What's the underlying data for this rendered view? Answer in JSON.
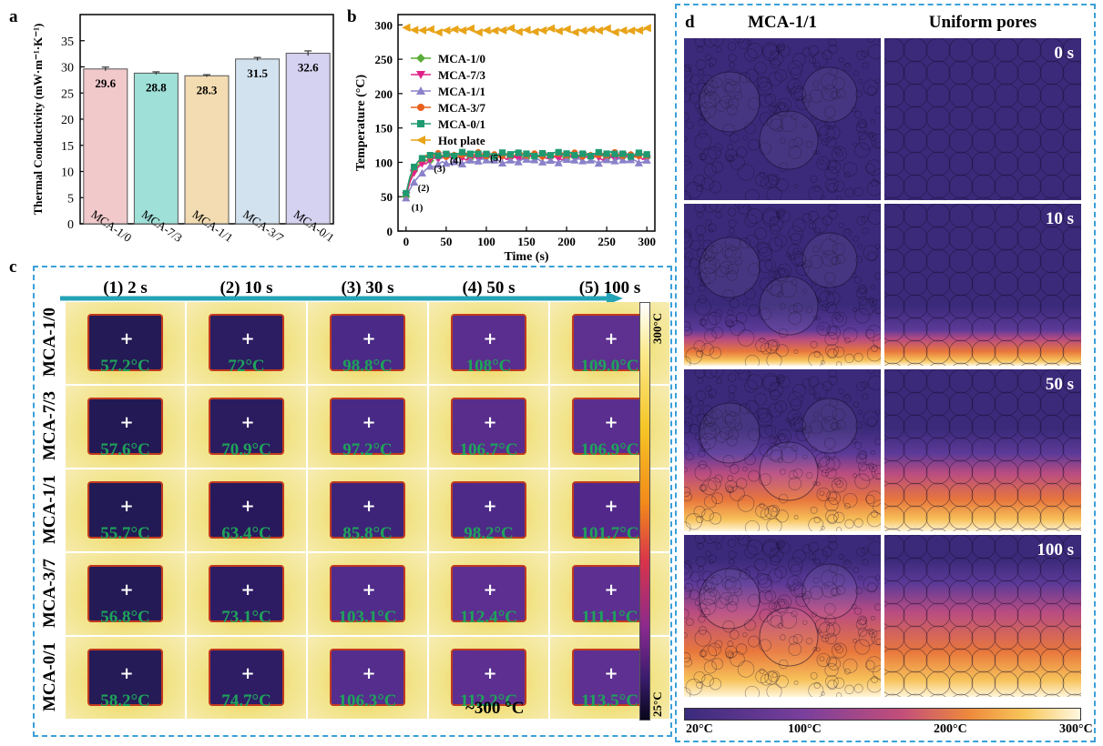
{
  "panels": {
    "a": {
      "label": "a"
    },
    "b": {
      "label": "b"
    },
    "c": {
      "label": "c"
    },
    "d": {
      "label": "d"
    }
  },
  "colors": {
    "accent_dash": "#3aa0d8",
    "ir_text": "#1fa35a"
  },
  "chart_data": [
    {
      "type": "bar",
      "id": "a",
      "title": "",
      "xlabel": "",
      "ylabel": "Thermal Conductivity (mW·m⁻¹·K⁻¹)",
      "categories": [
        "MCA-1/0",
        "MCA-7/3",
        "MCA-1/1",
        "MCA-3/7",
        "MCA-0/1"
      ],
      "values": [
        29.6,
        28.8,
        28.3,
        31.5,
        32.6
      ],
      "value_labels": [
        "29.6",
        "28.8",
        "28.3",
        "31.5",
        "32.6"
      ],
      "errors": [
        0.35,
        0.25,
        0.2,
        0.3,
        0.45
      ],
      "bar_colors": [
        "#f2c9cb",
        "#9fe0d8",
        "#f3dcb1",
        "#d2e2ef",
        "#d5d1f0"
      ],
      "ylim": [
        0,
        40
      ],
      "yticks": [
        "0",
        "5",
        "10",
        "15",
        "20",
        "25",
        "30",
        "35"
      ]
    },
    {
      "type": "line",
      "id": "b",
      "xlabel": "Time (s)",
      "ylabel": "Temperature (°C)",
      "xlim": [
        -10,
        310
      ],
      "ylim": [
        0,
        315
      ],
      "xticks": [
        "0",
        "50",
        "100",
        "150",
        "200",
        "250",
        "300"
      ],
      "yticks": [
        "0",
        "50",
        "100",
        "150",
        "200",
        "250",
        "300"
      ],
      "series": [
        {
          "name": "MCA-1/0",
          "color": "#5aab37",
          "marker": "diamond",
          "start": 50,
          "plateau": 109,
          "tau": 10
        },
        {
          "name": "MCA-7/3",
          "color": "#e0218a",
          "marker": "tri-down",
          "start": 52,
          "plateau": 107,
          "tau": 11
        },
        {
          "name": "MCA-1/1",
          "color": "#8a82c9",
          "marker": "tri-up",
          "start": 48,
          "plateau": 102,
          "tau": 18
        },
        {
          "name": "MCA-3/7",
          "color": "#e8601c",
          "marker": "circle",
          "start": 54,
          "plateau": 111,
          "tau": 9
        },
        {
          "name": "MCA-0/1",
          "color": "#1f9a70",
          "marker": "square",
          "start": 55,
          "plateau": 112,
          "tau": 9
        },
        {
          "name": "Hot plate",
          "color": "#e8a317",
          "marker": "tri-left",
          "start": 296,
          "plateau": 292,
          "tau": 5
        }
      ],
      "annotations": [
        {
          "text": "(1)",
          "x": 2,
          "y": 30
        },
        {
          "text": "(2)",
          "x": 10,
          "y": 58
        },
        {
          "text": "(3)",
          "x": 30,
          "y": 86
        },
        {
          "text": "(4)",
          "x": 50,
          "y": 98
        },
        {
          "text": "(5)",
          "x": 100,
          "y": 102
        }
      ]
    }
  ],
  "panel_c": {
    "columns": [
      "(1) 2 s",
      "(2) 10 s",
      "(3) 30 s",
      "(4) 50 s",
      "(5) 100 s"
    ],
    "rows": [
      {
        "label": "MCA-1/0",
        "temps": [
          "57.2°C",
          "72°C",
          "98.8°C",
          "108°C",
          "109.0°C"
        ]
      },
      {
        "label": "MCA-7/3",
        "temps": [
          "57.6°C",
          "70.9°C",
          "97.2°C",
          "106.7°C",
          "106.9°C"
        ]
      },
      {
        "label": "MCA-1/1",
        "temps": [
          "55.7°C",
          "63.4°C",
          "85.8°C",
          "98.2°C",
          "101.7°C"
        ]
      },
      {
        "label": "MCA-3/7",
        "temps": [
          "56.8°C",
          "73.1°C",
          "103.1°C",
          "112.4°C",
          "111.1°C"
        ]
      },
      {
        "label": "MCA-0/1",
        "temps": [
          "58.2°C",
          "74.7°C",
          "106.3°C",
          "112.2°C",
          "113.5°C"
        ]
      }
    ],
    "interior_colors": [
      [
        "#241a55",
        "#2c1c62",
        "#4a2a86",
        "#5a2e8e",
        "#5e3090"
      ],
      [
        "#231a55",
        "#2b1c60",
        "#482985",
        "#582d8c",
        "#5a2e8e"
      ],
      [
        "#221a54",
        "#28195c",
        "#3e2478",
        "#4e2a88",
        "#52298a"
      ],
      [
        "#241b56",
        "#2d1c63",
        "#512c8b",
        "#5c2f90",
        "#5c2f90"
      ],
      [
        "#251b57",
        "#2e1d65",
        "#542d8d",
        "#5c2f90",
        "#5e3091"
      ]
    ],
    "colorbar_top": "300°C",
    "colorbar_bottom": "25°C",
    "hotplate_label": "~300 °C"
  },
  "panel_d": {
    "columns": [
      "MCA-1/1",
      "Uniform pores"
    ],
    "times": [
      "0 s",
      "10 s",
      "50 s",
      "100 s"
    ],
    "heat_fraction": [
      0.0,
      0.22,
      0.48,
      0.7
    ],
    "colorbar_labels": [
      "20°C",
      "100°C",
      "200°C",
      "300°C"
    ]
  }
}
